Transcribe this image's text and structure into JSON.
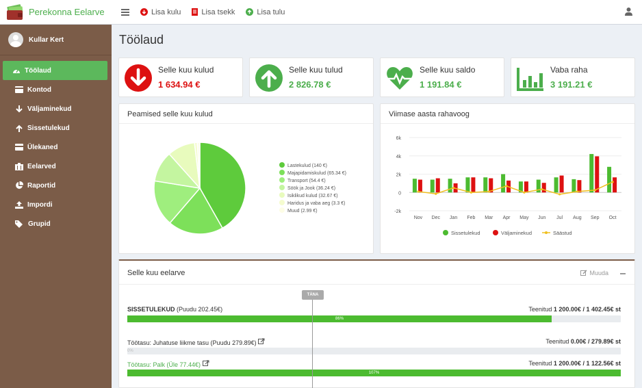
{
  "app": {
    "title": "Perekonna Eelarve"
  },
  "topnav": {
    "add_expense": "Lisa kulu",
    "add_receipt": "Lisa tsekk",
    "add_income": "Lisa tulu"
  },
  "sidebar": {
    "user_name": "Kullar Kert",
    "items": [
      {
        "label": "Töölaud",
        "icon": "dashboard-icon",
        "active": true
      },
      {
        "label": "Kontod",
        "icon": "card-icon"
      },
      {
        "label": "Väljaminekud",
        "icon": "arrow-down-icon"
      },
      {
        "label": "Sissetulekud",
        "icon": "arrow-up-icon"
      },
      {
        "label": "Ülekaned",
        "icon": "transfer-icon"
      },
      {
        "label": "Eelarved",
        "icon": "budget-icon"
      },
      {
        "label": "Raportid",
        "icon": "pie-icon"
      },
      {
        "label": "Impordi",
        "icon": "upload-icon"
      },
      {
        "label": "Grupid",
        "icon": "tag-icon"
      }
    ]
  },
  "page": {
    "title": "Töölaud"
  },
  "info_boxes": [
    {
      "label": "Selle kuu kulud",
      "value": "1 634.94 €",
      "color": "#dd1111",
      "icon": "arrow-down-circle-icon"
    },
    {
      "label": "Selle kuu tulud",
      "value": "2 826.78 €",
      "color": "#4cae4c",
      "icon": "arrow-up-circle-icon"
    },
    {
      "label": "Selle kuu saldo",
      "value": "1 191.84 €",
      "color": "#4cae4c",
      "icon": "heartbeat-icon"
    },
    {
      "label": "Vaba raha",
      "value": "3 191.21 €",
      "color": "#4cae4c",
      "icon": "bar-chart-icon"
    }
  ],
  "pie_panel": {
    "title": "Peamised selle kuu kulud"
  },
  "flow_panel": {
    "title": "Viimase aasta rahavoog"
  },
  "chart_data": [
    {
      "type": "pie",
      "slices": [
        {
          "label": "Lastekulud (140 €)",
          "value": 140,
          "color": "#5ecb3c"
        },
        {
          "label": "Majapidamiskulud (65.34 €)",
          "value": 65.34,
          "color": "#7de05a"
        },
        {
          "label": "Transport (54.4 €)",
          "value": 54.4,
          "color": "#9fee7e"
        },
        {
          "label": "Söök ja Jook (36.24 €)",
          "value": 36.24,
          "color": "#c4f5a0"
        },
        {
          "label": "Isiklikud kulud (32.67 €)",
          "value": 32.67,
          "color": "#e8fbbd"
        },
        {
          "label": "Haridus ja vaba aeg (3.3 €)",
          "value": 3.3,
          "color": "#f5fccf"
        },
        {
          "label": "Muud (2.99 €)",
          "value": 2.99,
          "color": "#fdfde6"
        }
      ]
    },
    {
      "type": "bar",
      "categories": [
        "Nov",
        "Dec",
        "Jan",
        "Feb",
        "Mar",
        "Apr",
        "May",
        "Jun",
        "Jul",
        "Aug",
        "Sep",
        "Oct"
      ],
      "ylim": [
        -2000,
        6000
      ],
      "yticks": [
        "-2k",
        "0",
        "2k",
        "4k",
        "6k"
      ],
      "series": [
        {
          "name": "Sissetulekud",
          "color": "#4cbb30",
          "values": [
            1500,
            1400,
            1500,
            1650,
            1650,
            2000,
            1200,
            1400,
            1650,
            1450,
            4200,
            2800
          ]
        },
        {
          "name": "Väljaminekud",
          "color": "#dd1111",
          "values": [
            1400,
            1550,
            1000,
            1650,
            1550,
            1300,
            1200,
            1050,
            1850,
            1350,
            3950,
            1650
          ]
        },
        {
          "name": "Säästud",
          "color": "#f0c020",
          "type": "line",
          "values": [
            100,
            -150,
            500,
            0,
            100,
            700,
            0,
            350,
            -200,
            100,
            250,
            1150
          ]
        }
      ]
    }
  ],
  "budget": {
    "title": "Selle kuu eelarve",
    "edit_label": "Muuda",
    "today_label": "TÄNA",
    "rows": [
      {
        "name": "SISSETULEKUD",
        "note": "(Puudu 202.45€)",
        "earned_label": "Teenitud",
        "earned": "1 200.00€",
        "planned": "/ 1 402.45€ st",
        "percent": 86,
        "percent_label": "86%"
      },
      {
        "name": "Töötasu: Juhatuse liikme tasu (Puudu 279.89€)",
        "earned_label": "Teenitud",
        "earned": "0.00€",
        "planned": "/ 279.89€ st",
        "percent": 0,
        "percent_label": "0%"
      },
      {
        "name": "Töötasu: Palk (Üle 77.44€)",
        "earned_label": "Teenitud",
        "earned": "1 200.00€",
        "planned": "/ 1 122.56€ st",
        "percent": 100,
        "percent_label": "107%"
      }
    ]
  }
}
